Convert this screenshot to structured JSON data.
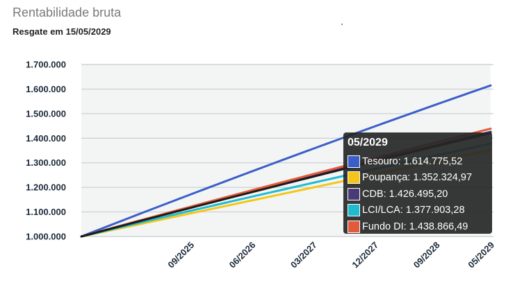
{
  "header": {
    "title": "Rentabilidade bruta",
    "subtitle": "Resgate em 15/05/2029"
  },
  "chart_data": {
    "type": "line",
    "title": "Rentabilidade bruta",
    "subtitle": "Resgate em 15/05/2029",
    "xlabel": "",
    "ylabel": "",
    "x_start": "05/2024",
    "x_end": "05/2029",
    "xticks": [
      "09/2025",
      "06/2026",
      "03/2027",
      "12/2027",
      "09/2028",
      "05/2029"
    ],
    "yticks": [
      "1.000.000",
      "1.100.000",
      "1.200.000",
      "1.300.000",
      "1.400.000",
      "1.500.000",
      "1.600.000",
      "1.700.000"
    ],
    "ylim": [
      1000000,
      1700000
    ],
    "grid": true,
    "plot_background": "#f3f5f5",
    "series": [
      {
        "name": "Tesouro",
        "color": "#3a5fc8",
        "start": 1000000,
        "end": 1614775.52,
        "curvature": 0.06
      },
      {
        "name": "Poupança",
        "color": "#f5c518",
        "start": 1000000,
        "end": 1352324.97,
        "curvature": 0.0
      },
      {
        "name": "CDB",
        "color": "#4b3a78",
        "start": 1000000,
        "end": 1426495.2,
        "curvature": 0.05
      },
      {
        "name": "LCI/LCA",
        "color": "#1fbcd0",
        "start": 1000000,
        "end": 1377903.28,
        "curvature": 0.05
      },
      {
        "name": "Fundo DI",
        "color": "#e25a3a",
        "start": 1000000,
        "end": 1438866.49,
        "curvature": 0.05
      },
      {
        "name": "",
        "color": "#1a1a1a",
        "start": 1000000,
        "end": 1421000,
        "curvature": 0.05
      }
    ],
    "tooltip": {
      "date": "05/2029",
      "rows": [
        {
          "label": "Tesouro: 1.614.775,52",
          "color": "#3a5fc8"
        },
        {
          "label": "Poupança: 1.352.324,97",
          "color": "#f5c518"
        },
        {
          "label": "CDB: 1.426.495,20",
          "color": "#4b3a78"
        },
        {
          "label": "LCI/LCA: 1.377.903,28",
          "color": "#1fbcd0"
        },
        {
          "label": "Fundo DI: 1.438.866,49",
          "color": "#e25a3a"
        }
      ]
    }
  }
}
